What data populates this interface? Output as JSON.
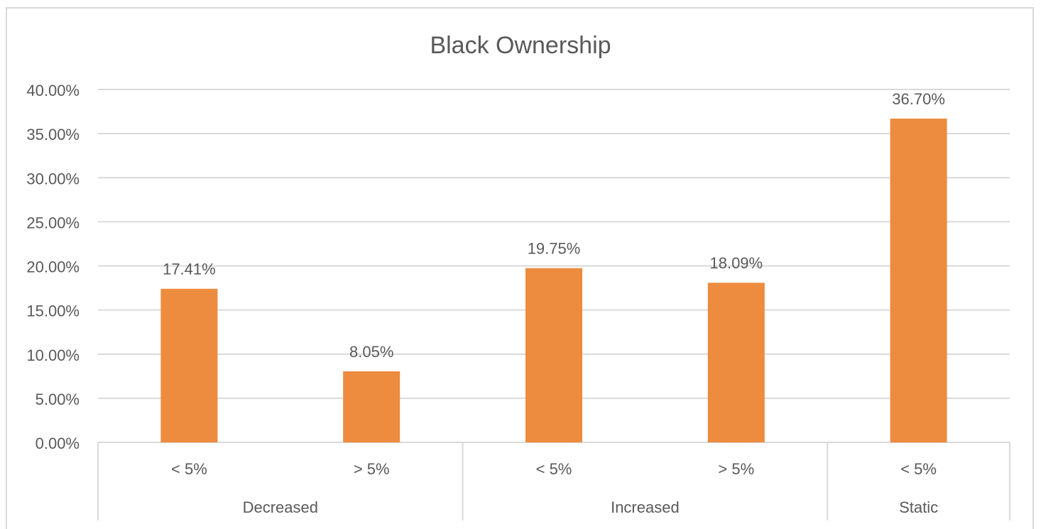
{
  "chart_data": {
    "type": "bar",
    "title": "Black Ownership",
    "categories": [
      {
        "label": "< 5%",
        "group": "Decreased"
      },
      {
        "label": "> 5%",
        "group": "Decreased"
      },
      {
        "label": "< 5%",
        "group": "Increased"
      },
      {
        "label": "> 5%",
        "group": "Increased"
      },
      {
        "label": "< 5%",
        "group": "Static"
      }
    ],
    "groups": [
      "Decreased",
      "Increased",
      "Static"
    ],
    "values": [
      17.41,
      8.05,
      19.75,
      18.09,
      36.7
    ],
    "data_labels": [
      "17.41%",
      "8.05%",
      "19.75%",
      "18.09%",
      "36.70%"
    ],
    "y_ticks": [
      "0.00%",
      "5.00%",
      "10.00%",
      "15.00%",
      "20.00%",
      "25.00%",
      "30.00%",
      "35.00%",
      "40.00%"
    ],
    "ylim": [
      0,
      40
    ],
    "xlabel": "",
    "ylabel": "",
    "grid": true,
    "legend": "none",
    "colors": {
      "bar": "#ED8B3E",
      "grid": "#d9d9d9",
      "text": "#595959",
      "title": "#595959"
    }
  }
}
